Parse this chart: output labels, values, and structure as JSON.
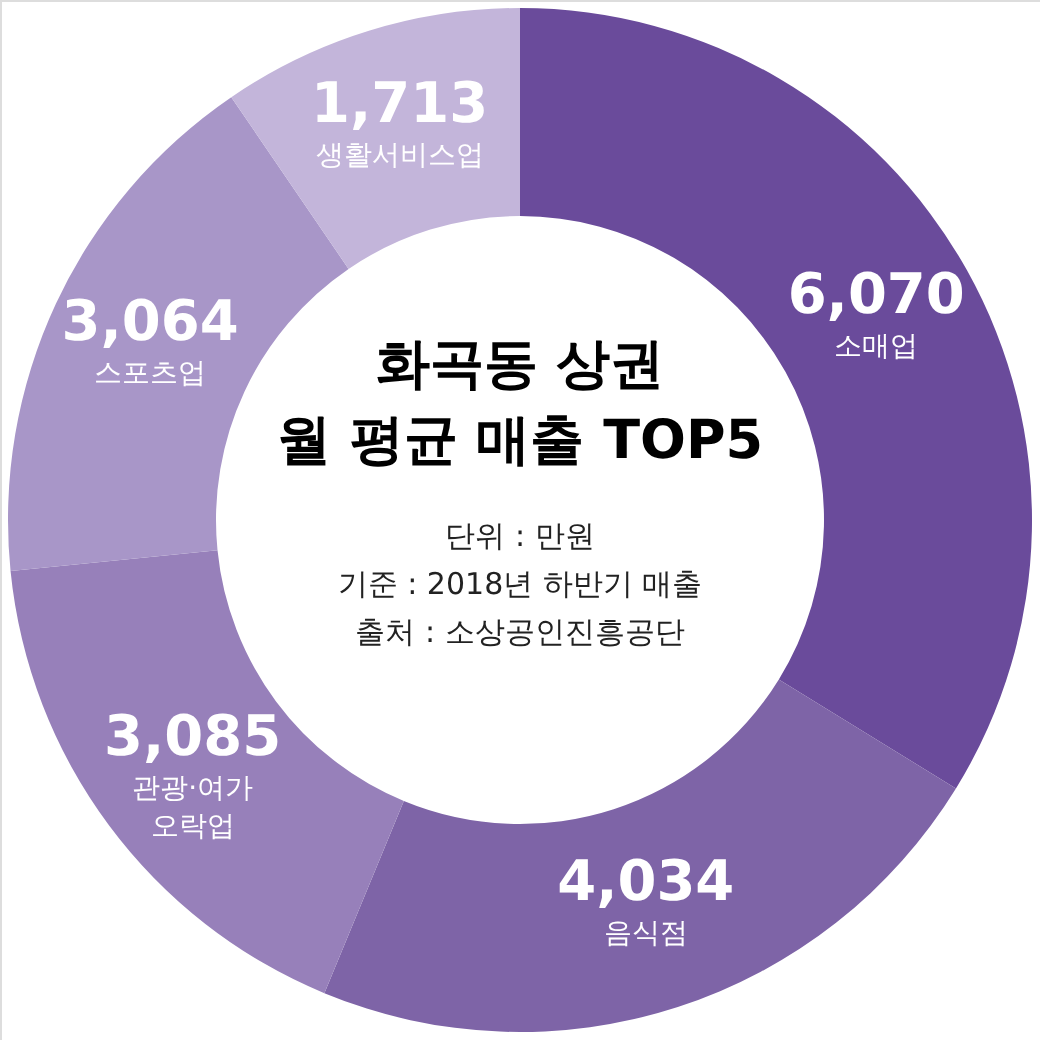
{
  "chart_data": {
    "type": "donut",
    "title": "화곡동 상권\n월 평균 매출 TOP5",
    "annotations": [
      "단위 : 만원",
      "기준 : 2018년 하반기 매출",
      "출처 : 소상공인진흥공단"
    ],
    "categories": [
      "소매업",
      "음식점",
      "관광·여가\n오락업",
      "스포츠업",
      "생활서비스업"
    ],
    "values": [
      6070,
      4034,
      3085,
      3064,
      1713
    ],
    "value_labels": [
      "6,070",
      "4,034",
      "3,085",
      "3,064",
      "1,713"
    ],
    "colors": [
      "#6a4b9b",
      "#7e64a7",
      "#9780ba",
      "#a896c8",
      "#c3b5da"
    ]
  }
}
